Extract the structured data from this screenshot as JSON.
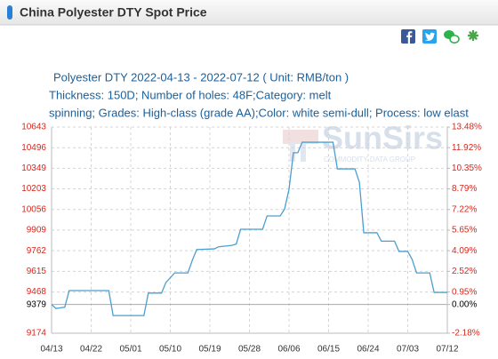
{
  "chart_data": {
    "type": "line",
    "title": "China Polyester DTY Spot Price",
    "subtitle": [
      "Polyester DTY 2022-04-13 - 2022-07-12  ( Unit: RMB/ton )",
      "Thickness: 150D; Number of holes: 48F;Category: melt",
      "spinning; Grades: High-class (grade AA);Color: white semi-dull; Process: low elast"
    ],
    "watermark": {
      "brand": "SunSirs",
      "tagline": "COMMODITY DATA GROUP"
    },
    "x": [
      "04/13",
      "04/14",
      "04/15",
      "04/16",
      "04/17",
      "04/26",
      "04/27",
      "05/04",
      "05/05",
      "05/08",
      "05/09",
      "05/11",
      "05/14",
      "05/15",
      "05/16",
      "05/20",
      "05/21",
      "05/24",
      "05/25",
      "05/26",
      "05/31",
      "06/01",
      "06/04",
      "06/05",
      "06/06",
      "06/07",
      "06/08",
      "06/09",
      "06/16",
      "06/17",
      "06/21",
      "06/22",
      "06/23",
      "06/26",
      "06/27",
      "06/30",
      "07/01",
      "07/03",
      "07/04",
      "07/05",
      "07/08",
      "07/09",
      "07/12"
    ],
    "values": [
      9379,
      9350,
      9355,
      9360,
      9478,
      9478,
      9300,
      9300,
      9460,
      9460,
      9535,
      9604,
      9604,
      9693,
      9770,
      9775,
      9790,
      9800,
      9810,
      9915,
      9915,
      10010,
      10010,
      10060,
      10200,
      10460,
      10460,
      10535,
      10535,
      10345,
      10345,
      10250,
      9890,
      9890,
      9830,
      9830,
      9757,
      9757,
      9700,
      9604,
      9604,
      9465,
      9465
    ],
    "color": "#4a9fd0",
    "xlim": [
      "04/13",
      "07/12"
    ],
    "xticks": [
      "04/13",
      "04/22",
      "05/01",
      "05/10",
      "05/19",
      "05/28",
      "06/06",
      "06/15",
      "06/24",
      "07/03",
      "07/12"
    ],
    "ylim": [
      9174,
      10643
    ],
    "yticks": [
      9174,
      9379,
      9468,
      9615,
      9762,
      9909,
      10056,
      10203,
      10349,
      10496,
      10643
    ],
    "y2lim": [
      -2.18,
      13.48
    ],
    "y2ticks": [
      {
        "value": -2.18,
        "label": "-2.18%"
      },
      {
        "value": 0,
        "label": "0.00%"
      },
      {
        "value": 0.95,
        "label": "0.95%"
      },
      {
        "value": 2.52,
        "label": "2.52%"
      },
      {
        "value": 4.09,
        "label": "4.09%"
      },
      {
        "value": 5.65,
        "label": "5.65%"
      },
      {
        "value": 7.22,
        "label": "7.22%"
      },
      {
        "value": 8.79,
        "label": "8.79%"
      },
      {
        "value": 10.35,
        "label": "10.35%"
      },
      {
        "value": 11.92,
        "label": "11.92%"
      },
      {
        "value": 13.48,
        "label": "13.48%"
      }
    ],
    "tick_color": "#d9261c",
    "grid": true
  }
}
